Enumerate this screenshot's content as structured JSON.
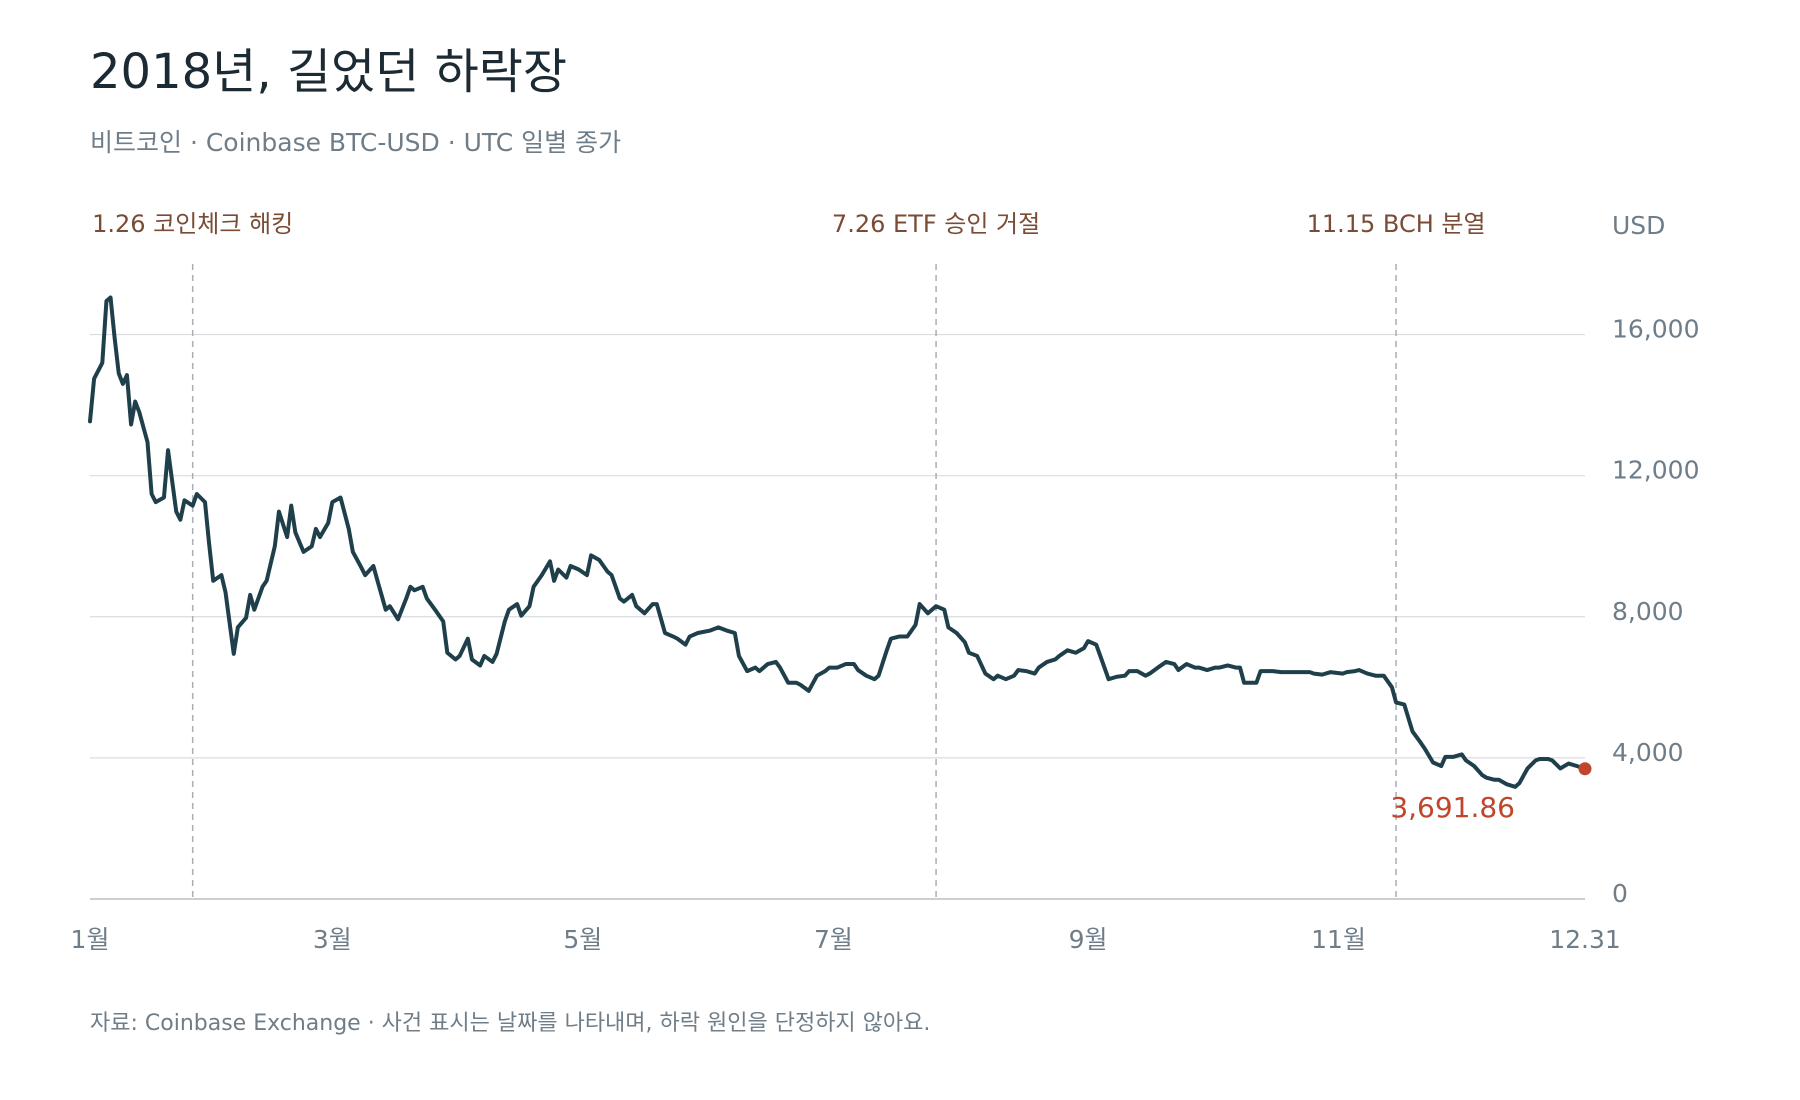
{
  "chart_data": {
    "type": "line",
    "title": "2018년, 길었던 하락장",
    "subtitle": "비트코인 · Coinbase BTC-USD · UTC 일별 종가",
    "footer": "자료: Coinbase Exchange · 사건 표시는 날짜를 나타내며, 하락 원인을 단정하지 않아요.",
    "ylabel": "USD",
    "color": "#1f3f4b",
    "end_color": "#c0452b",
    "grid": true,
    "xlim": [
      1,
      365
    ],
    "ylim": [
      0,
      18000
    ],
    "yticks": [
      0,
      {
        "value": 4000,
        "label": "4,000"
      },
      {
        "value": 8000,
        "label": "8,000"
      },
      {
        "value": 12000,
        "label": "12,000"
      },
      {
        "value": 16000,
        "label": "16,000"
      }
    ],
    "xticks": [
      {
        "value": 1,
        "label": "1월"
      },
      {
        "value": 60,
        "label": "3월"
      },
      {
        "value": 121,
        "label": "5월"
      },
      {
        "value": 182,
        "label": "7월"
      },
      {
        "value": 244,
        "label": "9월"
      },
      {
        "value": 305,
        "label": "11월"
      },
      {
        "value": 365,
        "label": "12.31"
      }
    ],
    "annotations": [
      {
        "x": 26,
        "label": "1.26 코인체크 해킹"
      },
      {
        "x": 207,
        "label": "7.26 ETF 승인 거절"
      },
      {
        "x": 319,
        "label": "11.15 BCH 분열"
      }
    ],
    "x": [
      1,
      2,
      4,
      5,
      6,
      7,
      8,
      9,
      10,
      11,
      12,
      13,
      15,
      16,
      17,
      19,
      20,
      22,
      23,
      24,
      26,
      27,
      29,
      30,
      31,
      33,
      34,
      36,
      37,
      39,
      40,
      41,
      43,
      44,
      46,
      47,
      49,
      50,
      51,
      53,
      55,
      56,
      57,
      59,
      60,
      62,
      64,
      65,
      67,
      68,
      70,
      71,
      73,
      74,
      76,
      78,
      79,
      80,
      82,
      83,
      85,
      87,
      88,
      90,
      91,
      93,
      94,
      96,
      97,
      99,
      100,
      102,
      103,
      105,
      106,
      108,
      109,
      111,
      113,
      114,
      115,
      117,
      118,
      120,
      122,
      123,
      125,
      127,
      128,
      130,
      131,
      133,
      134,
      136,
      138,
      139,
      141,
      143,
      144,
      146,
      147,
      149,
      152,
      154,
      156,
      158,
      159,
      161,
      163,
      164,
      166,
      168,
      169,
      171,
      173,
      174,
      176,
      178,
      180,
      181,
      183,
      185,
      187,
      188,
      190,
      192,
      193,
      195,
      196,
      198,
      200,
      202,
      203,
      205,
      207,
      209,
      210,
      212,
      214,
      215,
      217,
      219,
      221,
      222,
      224,
      226,
      227,
      229,
      231,
      232,
      234,
      236,
      237,
      239,
      241,
      243,
      244,
      246,
      248,
      249,
      251,
      253,
      254,
      256,
      258,
      259,
      261,
      263,
      265,
      266,
      268,
      270,
      271,
      273,
      275,
      276,
      278,
      280,
      281,
      282,
      285,
      286,
      289,
      291,
      293,
      295,
      298,
      299,
      301,
      303,
      306,
      307,
      309,
      310,
      312,
      314,
      316,
      318,
      319,
      321,
      323,
      325,
      326,
      328,
      330,
      331,
      333,
      335,
      336,
      338,
      340,
      341,
      343,
      344,
      346,
      348,
      349,
      351,
      353,
      354,
      356,
      357,
      359,
      361,
      363,
      365
    ],
    "values": [
      13540,
      14750,
      15200,
      16950,
      17050,
      15900,
      14900,
      14600,
      14850,
      13450,
      14100,
      13800,
      12950,
      11480,
      11250,
      11380,
      12720,
      10980,
      10750,
      11300,
      11150,
      11480,
      11250,
      10070,
      9020,
      9180,
      8690,
      6950,
      7700,
      7970,
      8620,
      8200,
      8850,
      9020,
      10000,
      10980,
      10260,
      11150,
      10390,
      9840,
      10000,
      10490,
      10260,
      10660,
      11250,
      11380,
      10490,
      9840,
      9410,
      9180,
      9440,
      9020,
      8200,
      8300,
      7930,
      8520,
      8850,
      8750,
      8850,
      8520,
      8200,
      7870,
      6980,
      6790,
      6890,
      7380,
      6790,
      6620,
      6890,
      6720,
      6950,
      7870,
      8200,
      8360,
      8030,
      8300,
      8850,
      9180,
      9570,
      9020,
      9340,
      9110,
      9440,
      9340,
      9180,
      9740,
      9610,
      9280,
      9180,
      8520,
      8430,
      8620,
      8300,
      8100,
      8360,
      8360,
      7540,
      7440,
      7380,
      7210,
      7440,
      7540,
      7610,
      7700,
      7610,
      7540,
      6890,
      6460,
      6560,
      6460,
      6660,
      6720,
      6560,
      6130,
      6130,
      6070,
      5900,
      6330,
      6460,
      6560,
      6560,
      6660,
      6660,
      6490,
      6330,
      6230,
      6330,
      7050,
      7380,
      7440,
      7440,
      7770,
      8360,
      8100,
      8300,
      8200,
      7700,
      7540,
      7280,
      6980,
      6890,
      6390,
      6230,
      6330,
      6230,
      6330,
      6490,
      6460,
      6390,
      6560,
      6720,
      6790,
      6890,
      7050,
      6980,
      7110,
      7310,
      7210,
      6560,
      6230,
      6300,
      6330,
      6460,
      6460,
      6330,
      6390,
      6560,
      6720,
      6660,
      6490,
      6660,
      6560,
      6560,
      6490,
      6560,
      6560,
      6620,
      6560,
      6560,
      6130,
      6130,
      6460,
      6460,
      6430,
      6430,
      6430,
      6430,
      6390,
      6360,
      6430,
      6390,
      6430,
      6460,
      6490,
      6390,
      6330,
      6330,
      6000,
      5570,
      5510,
      4750,
      4430,
      4260,
      3870,
      3770,
      4030,
      4030,
      4100,
      3930,
      3770,
      3510,
      3440,
      3380,
      3380,
      3250,
      3180,
      3280,
      3700,
      3930,
      3970,
      3970,
      3930,
      3700,
      3840,
      3770,
      3691.86
    ],
    "value_labels": [
      null,
      null,
      null,
      null,
      null,
      null,
      null,
      null,
      null,
      null,
      null,
      null,
      null,
      null,
      null,
      null,
      null,
      null,
      null,
      null,
      null,
      null,
      null,
      null,
      null,
      null,
      null,
      null,
      null,
      null,
      null,
      null,
      null,
      null,
      null,
      null,
      null,
      null,
      null,
      null,
      null,
      null,
      null,
      null,
      null,
      null,
      null,
      null,
      null,
      null,
      null,
      null,
      null,
      null,
      null,
      null,
      null,
      null,
      null,
      null,
      null,
      null,
      null,
      null,
      null,
      null,
      null,
      null,
      null,
      null,
      null,
      null,
      null,
      null,
      null,
      null,
      null,
      null,
      null,
      null,
      null,
      null,
      null,
      null,
      null,
      null,
      null,
      null,
      null,
      null,
      null,
      null,
      null,
      null,
      null,
      null,
      null,
      null,
      null,
      null,
      null,
      null,
      null,
      null,
      null,
      null,
      null,
      null,
      null,
      null,
      null,
      null,
      null,
      null,
      null,
      null,
      null,
      null,
      null,
      null,
      null,
      null,
      null,
      null,
      null,
      null,
      null,
      null,
      null,
      null,
      null,
      null,
      null,
      null,
      null,
      null,
      null,
      null,
      null,
      null,
      null,
      null,
      null,
      null,
      null,
      null,
      null,
      null,
      null,
      null,
      null,
      null,
      null,
      null,
      null,
      null,
      null,
      null,
      null,
      null,
      null,
      null,
      null,
      null,
      null,
      null,
      null,
      null,
      null,
      null,
      null,
      null,
      null,
      null,
      null,
      null,
      null,
      null,
      null,
      null,
      null,
      null,
      null,
      null,
      null,
      null,
      null,
      null,
      null,
      null,
      null,
      null,
      null,
      null,
      null,
      null,
      null,
      null,
      null,
      null,
      null,
      null,
      null,
      null,
      null,
      null,
      null,
      null,
      null,
      null,
      null,
      null,
      null,
      null,
      null,
      null,
      null,
      null,
      null,
      null,
      null,
      null,
      null,
      null,
      null,
      "3,691.86"
    ]
  }
}
